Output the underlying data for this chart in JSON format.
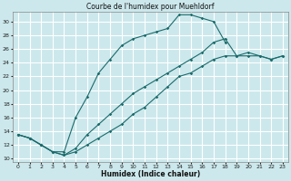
{
  "title": "Courbe de l'humidex pour Muehldorf",
  "xlabel": "Humidex (Indice chaleur)",
  "bg_color": "#cce8ec",
  "line_color": "#1a6b6b",
  "grid_color": "#ffffff",
  "xlim": [
    -0.5,
    23.5
  ],
  "ylim": [
    9.5,
    31.5
  ],
  "xticks": [
    0,
    1,
    2,
    3,
    4,
    5,
    6,
    7,
    8,
    9,
    10,
    11,
    12,
    13,
    14,
    15,
    16,
    17,
    18,
    19,
    20,
    21,
    22,
    23
  ],
  "yticks": [
    10,
    12,
    14,
    16,
    18,
    20,
    22,
    24,
    26,
    28,
    30
  ],
  "line1_x": [
    0,
    1,
    2,
    3,
    4,
    5,
    6,
    7,
    8,
    9,
    10,
    11,
    12,
    13,
    14,
    15,
    16,
    17,
    18
  ],
  "line1_y": [
    13.5,
    13.0,
    12.0,
    11.0,
    11.0,
    16.0,
    19.0,
    22.5,
    24.5,
    26.5,
    27.5,
    28.0,
    28.5,
    29.0,
    31.0,
    31.0,
    30.5,
    30.0,
    27.0
  ],
  "line2_x": [
    0,
    1,
    2,
    3,
    4,
    5,
    6,
    7,
    8,
    9,
    10,
    11,
    12,
    13,
    14,
    15,
    16,
    17,
    18,
    19,
    20,
    21,
    22,
    23
  ],
  "line2_y": [
    13.5,
    13.0,
    12.0,
    11.0,
    10.5,
    11.5,
    13.5,
    15.0,
    16.5,
    18.0,
    19.5,
    20.5,
    21.5,
    22.5,
    23.5,
    24.5,
    25.5,
    27.0,
    27.5,
    25.0,
    25.0,
    25.0,
    24.5,
    25.0
  ],
  "line3_x": [
    0,
    1,
    2,
    3,
    4,
    5,
    6,
    7,
    8,
    9,
    10,
    11,
    12,
    13,
    14,
    15,
    16,
    17,
    18,
    19,
    20,
    21,
    22,
    23
  ],
  "line3_y": [
    13.5,
    13.0,
    12.0,
    11.0,
    10.5,
    11.0,
    12.0,
    13.0,
    14.0,
    15.0,
    16.5,
    17.5,
    19.0,
    20.5,
    22.0,
    22.5,
    23.5,
    24.5,
    25.0,
    25.0,
    25.5,
    25.0,
    24.5,
    25.0
  ]
}
